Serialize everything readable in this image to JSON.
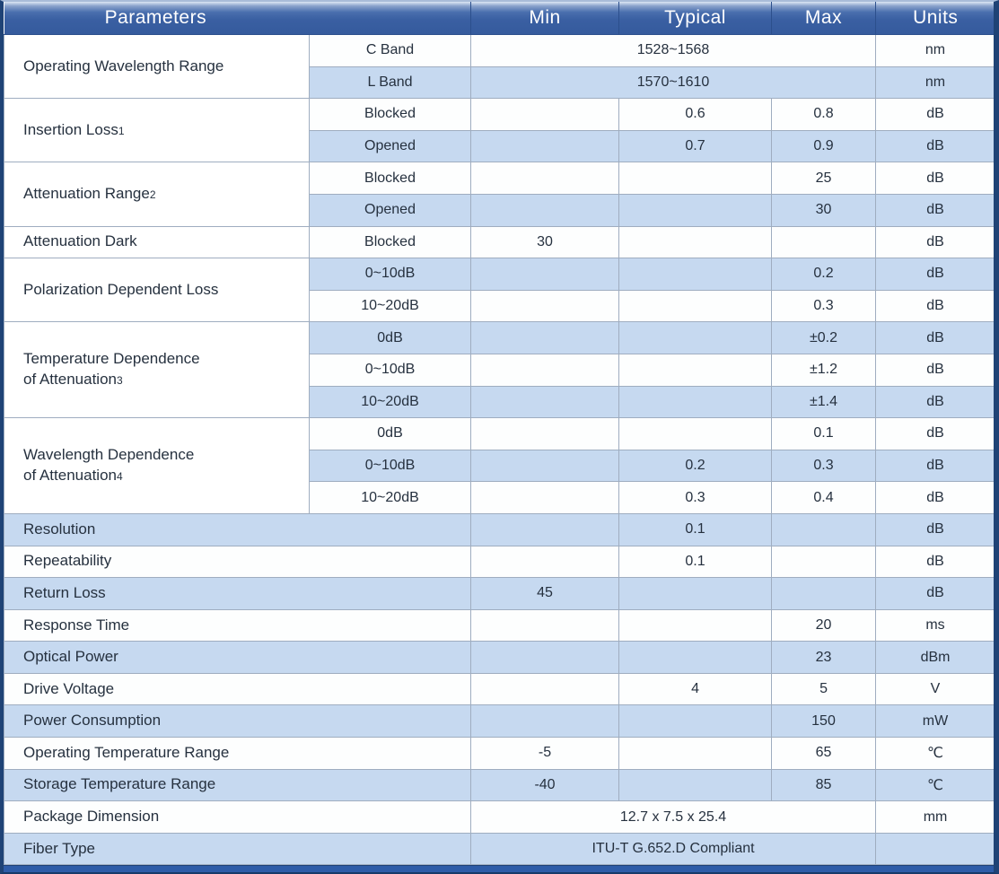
{
  "colors": {
    "header_blue": "#3a5fa2",
    "row_shade_blue": "#c6d9f0",
    "row_white": "#fdfefe",
    "grid_line": "#9fadc0",
    "outer_border": "#1f4376",
    "bottom_bar": "#2e5ca8",
    "header_text": "#ffffff",
    "body_text": "#26313f"
  },
  "table": {
    "header": {
      "parameters": "Parameters",
      "min": "Min",
      "typical": "Typical",
      "max": "Max",
      "units": "Units"
    },
    "rows": [
      {
        "param": "Operating Wavelength Range",
        "param_rowspan": 2,
        "sub": "C Band",
        "value_span": "1528~1568",
        "units": "nm",
        "shade": false
      },
      {
        "sub": "L Band",
        "value_span": "1570~1610",
        "units": "nm",
        "shade": true
      },
      {
        "param": "Insertion Loss",
        "param_note": "1",
        "param_rowspan": 2,
        "sub": "Blocked",
        "min": "",
        "typical": "0.6",
        "max": "0.8",
        "units": "dB",
        "shade": false
      },
      {
        "sub": "Opened",
        "min": "",
        "typical": "0.7",
        "max": "0.9",
        "units": "dB",
        "shade": true
      },
      {
        "param": "Attenuation Range",
        "param_note": "2",
        "param_rowspan": 2,
        "sub": "Blocked",
        "min": "",
        "typical": "",
        "max": "25",
        "units": "dB",
        "shade": false
      },
      {
        "sub": "Opened",
        "min": "",
        "typical": "",
        "max": "30",
        "units": "dB",
        "shade": true
      },
      {
        "param": "Attenuation Dark",
        "sub": "Blocked",
        "min": "30",
        "typical": "",
        "max": "",
        "units": "dB",
        "shade": false
      },
      {
        "param": "Polarization Dependent Loss",
        "param_rowspan": 2,
        "sub": "0~10dB",
        "min": "",
        "typical": "",
        "max": "0.2",
        "units": "dB",
        "shade": true
      },
      {
        "sub": "10~20dB",
        "min": "",
        "typical": "",
        "max": "0.3",
        "units": "dB",
        "shade": false
      },
      {
        "param": "Temperature Dependence",
        "param_line2": "of Attenuation",
        "param_note": "3",
        "param_rowspan": 3,
        "sub": "0dB",
        "min": "",
        "typical": "",
        "max": "±0.2",
        "units": "dB",
        "shade": true
      },
      {
        "sub": "0~10dB",
        "min": "",
        "typical": "",
        "max": "±1.2",
        "units": "dB",
        "shade": false
      },
      {
        "sub": "10~20dB",
        "min": "",
        "typical": "",
        "max": "±1.4",
        "units": "dB",
        "shade": true
      },
      {
        "param": "Wavelength Dependence",
        "param_line2": "of Attenuation",
        "param_note": "4",
        "param_rowspan": 3,
        "sub": "0dB",
        "min": "",
        "typical": "",
        "max": "0.1",
        "units": "dB",
        "shade": false
      },
      {
        "sub": "0~10dB",
        "min": "",
        "typical": "0.2",
        "max": "0.3",
        "units": "dB",
        "shade": true
      },
      {
        "sub": "10~20dB",
        "min": "",
        "typical": "0.3",
        "max": "0.4",
        "units": "dB",
        "shade": false
      },
      {
        "param": "Resolution",
        "param_colspan": 2,
        "min": "",
        "typical": "0.1",
        "max": "",
        "units": "dB",
        "shade": true
      },
      {
        "param": "Repeatability",
        "param_colspan": 2,
        "min": "",
        "typical": "0.1",
        "max": "",
        "units": "dB",
        "shade": false
      },
      {
        "param": "Return Loss",
        "param_colspan": 2,
        "min": "45",
        "typical": "",
        "max": "",
        "units": "dB",
        "shade": true
      },
      {
        "param": "Response Time",
        "param_colspan": 2,
        "min": "",
        "typical": "",
        "max": "20",
        "units": "ms",
        "shade": false
      },
      {
        "param": "Optical Power",
        "param_colspan": 2,
        "min": "",
        "typical": "",
        "max": "23",
        "units": "dBm",
        "shade": true
      },
      {
        "param": "Drive Voltage",
        "param_colspan": 2,
        "min": "",
        "typical": "4",
        "max": "5",
        "units": "V",
        "shade": false
      },
      {
        "param": "Power Consumption",
        "param_colspan": 2,
        "min": "",
        "typical": "",
        "max": "150",
        "units": "mW",
        "shade": true
      },
      {
        "param": "Operating Temperature Range",
        "param_colspan": 2,
        "min": "-5",
        "typical": "",
        "max": "65",
        "units": "℃",
        "shade": false
      },
      {
        "param": "Storage Temperature Range",
        "param_colspan": 2,
        "min": "-40",
        "typical": "",
        "max": "85",
        "units": "℃",
        "shade": true
      },
      {
        "param": "Package Dimension",
        "param_colspan": 2,
        "value_span": "12.7 x 7.5 x 25.4",
        "units": "mm",
        "shade": false
      },
      {
        "param": "Fiber Type",
        "param_colspan": 2,
        "value_span": "ITU-T G.652.D Compliant",
        "units": "",
        "units_merged": true,
        "shade": true
      }
    ]
  }
}
